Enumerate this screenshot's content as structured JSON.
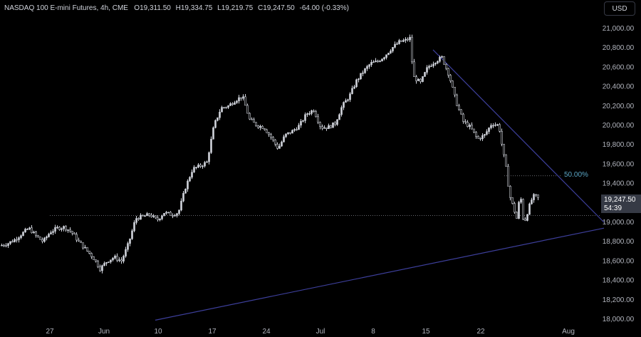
{
  "header": {
    "symbol": "NASDAQ 100 E-mini Futures, 4h, CME",
    "open_label": "O",
    "open": "19,311.50",
    "high_label": "H",
    "high": "19,334.75",
    "low_label": "L",
    "low": "19,219.75",
    "close_label": "C",
    "close": "19,247.50",
    "change": "-64.00 (-0.33%)"
  },
  "currency_button": "USD",
  "last_price": {
    "value": "19,247.50",
    "countdown": "54:39"
  },
  "fib_label": "50.00%",
  "colors": {
    "background": "#000000",
    "candle": "#d1d4dc",
    "trendline": "#3d3f9b",
    "fib": "#5aa5c4",
    "axis_text": "#b2b5be"
  },
  "chart_data": {
    "type": "candlestick",
    "y_axis": {
      "min": 18000,
      "max": 21000,
      "ticks": [
        "21,000.00",
        "20,800.00",
        "20,600.00",
        "20,400.00",
        "20,200.00",
        "20,000.00",
        "19,800.00",
        "19,600.00",
        "19,400.00",
        "19,200.00",
        "19,000.00",
        "18,800.00",
        "18,600.00",
        "18,400.00",
        "18,200.00",
        "18,000.00"
      ],
      "tick_values": [
        21000,
        20800,
        20600,
        20400,
        20200,
        20000,
        19800,
        19600,
        19400,
        19200,
        19000,
        18800,
        18600,
        18400,
        18200,
        18000
      ]
    },
    "x_axis": {
      "ticks": [
        "27",
        "Jun",
        "10",
        "17",
        "24",
        "Jul",
        "8",
        "15",
        "22",
        "Aug"
      ]
    },
    "close_path": [
      [
        0,
        18760
      ],
      [
        10,
        18780
      ],
      [
        20,
        18820
      ],
      [
        30,
        18880
      ],
      [
        40,
        18940
      ],
      [
        50,
        18860
      ],
      [
        60,
        18800
      ],
      [
        70,
        18900
      ],
      [
        80,
        18940
      ],
      [
        90,
        18950
      ],
      [
        100,
        18900
      ],
      [
        110,
        18800
      ],
      [
        120,
        18720
      ],
      [
        130,
        18640
      ],
      [
        140,
        18520
      ],
      [
        150,
        18600
      ],
      [
        160,
        18640
      ],
      [
        170,
        18600
      ],
      [
        180,
        18780
      ],
      [
        190,
        19040
      ],
      [
        200,
        19060
      ],
      [
        210,
        19080
      ],
      [
        220,
        19020
      ],
      [
        230,
        19100
      ],
      [
        240,
        19080
      ],
      [
        250,
        19100
      ],
      [
        260,
        19360
      ],
      [
        270,
        19550
      ],
      [
        280,
        19580
      ],
      [
        290,
        19620
      ],
      [
        300,
        20000
      ],
      [
        310,
        20180
      ],
      [
        320,
        20200
      ],
      [
        330,
        20260
      ],
      [
        340,
        20300
      ],
      [
        350,
        20060
      ],
      [
        360,
        20000
      ],
      [
        370,
        19980
      ],
      [
        380,
        19880
      ],
      [
        390,
        19760
      ],
      [
        400,
        19900
      ],
      [
        410,
        19940
      ],
      [
        420,
        20000
      ],
      [
        430,
        20120
      ],
      [
        440,
        20160
      ],
      [
        450,
        19980
      ],
      [
        460,
        19980
      ],
      [
        470,
        20020
      ],
      [
        480,
        20200
      ],
      [
        490,
        20300
      ],
      [
        500,
        20460
      ],
      [
        510,
        20560
      ],
      [
        520,
        20640
      ],
      [
        530,
        20660
      ],
      [
        540,
        20720
      ],
      [
        550,
        20800
      ],
      [
        560,
        20860
      ],
      [
        570,
        20880
      ],
      [
        575,
        20900
      ],
      [
        580,
        20500
      ],
      [
        590,
        20440
      ],
      [
        600,
        20600
      ],
      [
        610,
        20660
      ],
      [
        620,
        20700
      ],
      [
        630,
        20520
      ],
      [
        640,
        20240
      ],
      [
        650,
        20040
      ],
      [
        660,
        19980
      ],
      [
        670,
        19860
      ],
      [
        680,
        19900
      ],
      [
        690,
        20020
      ],
      [
        700,
        20000
      ],
      [
        705,
        19760
      ],
      [
        710,
        19560
      ],
      [
        715,
        19280
      ],
      [
        720,
        19160
      ],
      [
        725,
        19040
      ],
      [
        730,
        19300
      ],
      [
        735,
        18980
      ],
      [
        740,
        19100
      ],
      [
        745,
        19220
      ],
      [
        750,
        19280
      ],
      [
        755,
        19247.5
      ]
    ],
    "trendlines": [
      {
        "from": [
          608,
          20780
        ],
        "to": [
          848,
          19000
        ]
      },
      {
        "from": [
          218,
          17990
        ],
        "to": [
          848,
          18940
        ]
      }
    ],
    "horizontal_levels": [
      {
        "value": 19070,
        "style": "dotted"
      }
    ],
    "fib_levels": [
      {
        "label": "50.00%",
        "value": 19480
      }
    ],
    "annotations": [
      "50.00%"
    ]
  }
}
